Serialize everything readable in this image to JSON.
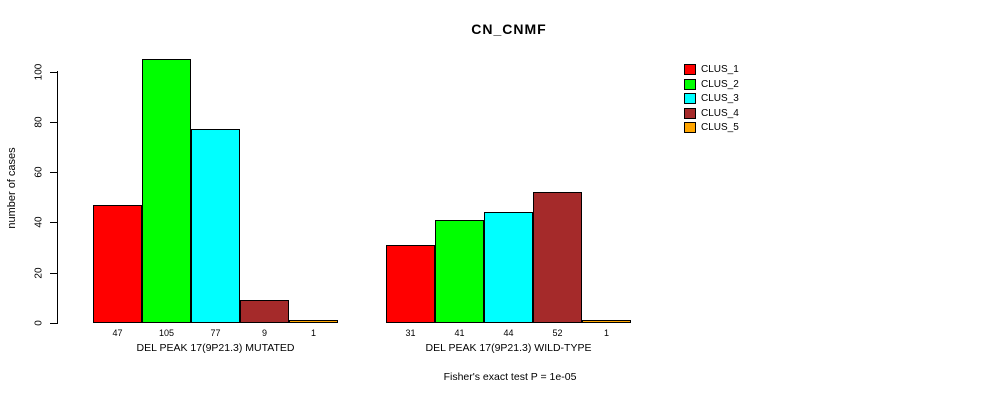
{
  "title": "CN_CNMF",
  "chart_data": {
    "type": "bar",
    "title": "CN_CNMF",
    "xlabel": "",
    "ylabel": "number of cases",
    "ylim": [
      0,
      105
    ],
    "yticks": [
      0,
      20,
      40,
      60,
      80,
      100
    ],
    "grid": false,
    "legend_position": "right",
    "categories": [
      "DEL PEAK 17(9P21.3) MUTATED",
      "DEL PEAK 17(9P21.3) WILD-TYPE"
    ],
    "series": [
      {
        "name": "CLUS_1",
        "color": "#ff0000",
        "values": [
          47,
          31
        ]
      },
      {
        "name": "CLUS_2",
        "color": "#00ff00",
        "values": [
          105,
          41
        ]
      },
      {
        "name": "CLUS_3",
        "color": "#00ffff",
        "values": [
          77,
          44
        ]
      },
      {
        "name": "CLUS_4",
        "color": "#a52a2a",
        "values": [
          9,
          52
        ]
      },
      {
        "name": "CLUS_5",
        "color": "#ffa500",
        "values": [
          1,
          1
        ]
      }
    ],
    "bar_value_labels": true,
    "annotation": "Fisher's exact test P = 1e-05"
  }
}
